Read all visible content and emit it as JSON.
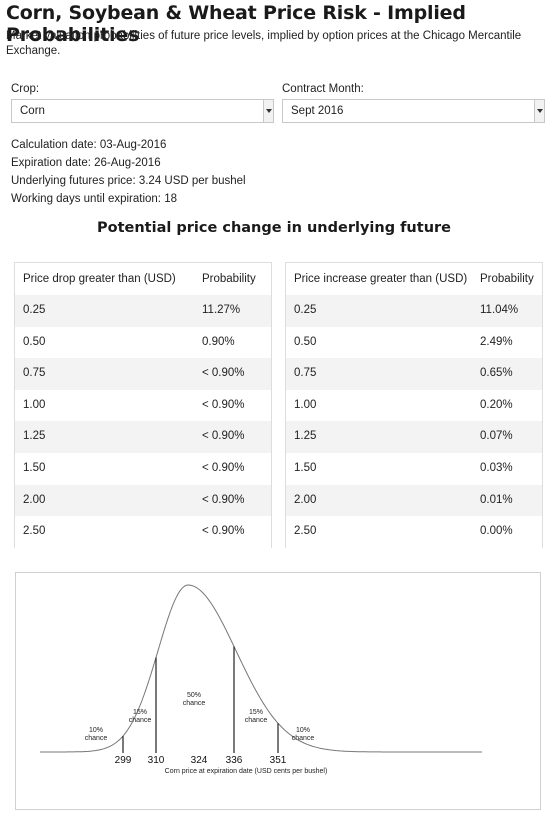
{
  "header": {
    "title": "Corn, Soybean & Wheat Price Risk - Implied Probabilities",
    "subtitle": "Market valuation probabilities of future price levels, implied by option prices at the Chicago Mercantile Exchange."
  },
  "controls": {
    "crop_label": "Crop:",
    "crop_value": "Corn",
    "month_label": "Contract Month:",
    "month_value": "Sept 2016"
  },
  "info": {
    "calc_date": "Calculation date: 03-Aug-2016",
    "exp_date": "Expiration date: 26-Aug-2016",
    "underlying": "Underlying futures price: 3.24 USD per bushel",
    "working_days": "Working days until expiration: 18"
  },
  "section_title": "Potential price change in underlying future",
  "drop_table": {
    "headers": [
      "Price drop greater than (USD)",
      "Probability"
    ],
    "rows": [
      [
        "0.25",
        "11.27%"
      ],
      [
        "0.50",
        "0.90%"
      ],
      [
        "0.75",
        "< 0.90%"
      ],
      [
        "1.00",
        "< 0.90%"
      ],
      [
        "1.25",
        "< 0.90%"
      ],
      [
        "1.50",
        "< 0.90%"
      ],
      [
        "2.00",
        "< 0.90%"
      ],
      [
        "2.50",
        "< 0.90%"
      ]
    ]
  },
  "increase_table": {
    "headers": [
      "Price increase greater than (USD)",
      "Probability"
    ],
    "rows": [
      [
        "0.25",
        "11.04%"
      ],
      [
        "0.50",
        "2.49%"
      ],
      [
        "0.75",
        "0.65%"
      ],
      [
        "1.00",
        "0.20%"
      ],
      [
        "1.25",
        "0.07%"
      ],
      [
        "1.50",
        "0.03%"
      ],
      [
        "2.00",
        "0.01%"
      ],
      [
        "2.50",
        "0.00%"
      ]
    ]
  },
  "chart_data": {
    "type": "area",
    "xlabel": "Corn price at expiration date (USD cents per bushel)",
    "ticks": [
      299,
      310,
      324,
      336,
      351
    ],
    "tick_labels": [
      "299",
      "310",
      "324",
      "336",
      "351"
    ],
    "regions": [
      {
        "from": null,
        "to": 299,
        "line1": "10%",
        "line2": "chance"
      },
      {
        "from": 299,
        "to": 310,
        "line1": "15%",
        "line2": "chance"
      },
      {
        "from": 310,
        "to": 336,
        "line1": "50%",
        "line2": "chance"
      },
      {
        "from": 336,
        "to": 351,
        "line1": "15%",
        "line2": "chance"
      },
      {
        "from": 351,
        "to": null,
        "line1": "10%",
        "line2": "chance"
      }
    ]
  }
}
